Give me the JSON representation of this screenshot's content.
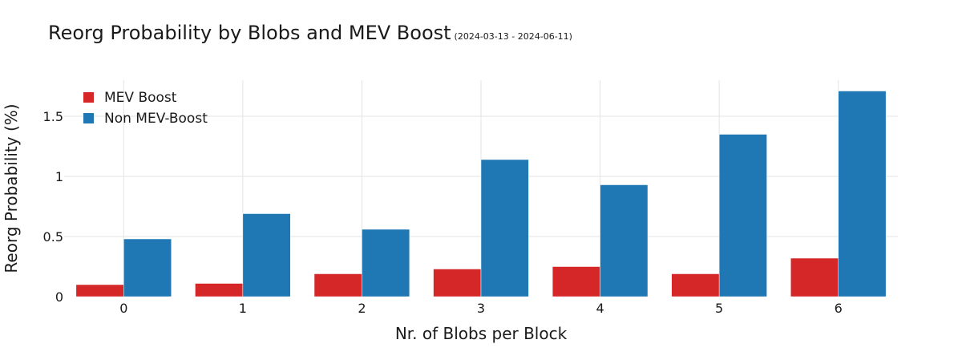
{
  "chart_data": {
    "type": "bar",
    "title": "Reorg Probability by Blobs and MEV Boost",
    "subtitle": "(2024-03-13 - 2024-06-11)",
    "xlabel": "Nr. of Blobs per Block",
    "ylabel": "Reorg Probability (%)",
    "categories": [
      "0",
      "1",
      "2",
      "3",
      "4",
      "5",
      "6"
    ],
    "ylim": [
      0,
      1.8
    ],
    "yticks": [
      0,
      0.5,
      1,
      1.5
    ],
    "ytick_labels": [
      "0",
      "0.5",
      "1",
      "1.5"
    ],
    "grid": true,
    "legend_position": "top-left",
    "series": [
      {
        "name": "MEV Boost",
        "color": "#d62728",
        "values": [
          0.1,
          0.11,
          0.19,
          0.23,
          0.25,
          0.19,
          0.32
        ]
      },
      {
        "name": "Non MEV-Boost",
        "color": "#1f77b4",
        "values": [
          0.48,
          0.69,
          0.56,
          1.14,
          0.93,
          1.35,
          1.71
        ]
      }
    ]
  }
}
